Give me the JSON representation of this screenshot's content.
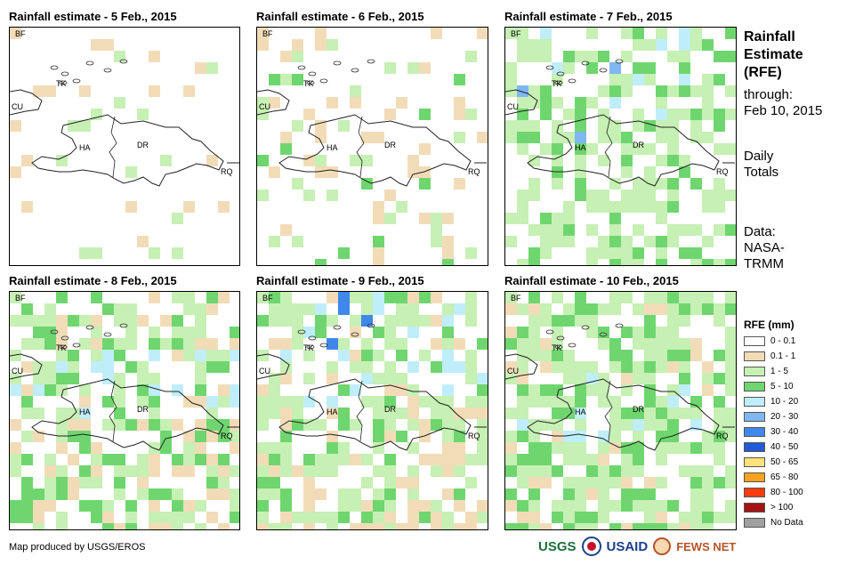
{
  "panels": [
    {
      "title": "Rainfall estimate - 5 Feb., 2015",
      "day": 0
    },
    {
      "title": "Rainfall estimate - 6 Feb., 2015",
      "day": 1
    },
    {
      "title": "Rainfall estimate - 7 Feb., 2015",
      "day": 2
    },
    {
      "title": "Rainfall estimate - 8 Feb., 2015",
      "day": 3
    },
    {
      "title": "Rainfall estimate - 9 Feb., 2015",
      "day": 4
    },
    {
      "title": "Rainfall estimate - 10 Feb., 2015",
      "day": 5
    }
  ],
  "map_labels": {
    "bf": "BF",
    "tk": "TK",
    "cu": "CU",
    "ha": "HA",
    "dr": "DR",
    "rq": "RQ"
  },
  "side": {
    "title_line1": "Rainfall",
    "title_line2": "Estimate",
    "title_line3": "(RFE)",
    "through": "through:",
    "through_date": "Feb 10, 2015",
    "totals_line1": "Daily",
    "totals_line2": "Totals",
    "data_line1": "Data:",
    "data_line2": "NASA-",
    "data_line3": "TRMM"
  },
  "legend": {
    "title": "RFE (mm)",
    "items": [
      {
        "label": "0 - 0.1",
        "color": "#ffffff"
      },
      {
        "label": "0.1 - 1",
        "color": "#f2dcb8"
      },
      {
        "label": "1 - 5",
        "color": "#c6f0b4"
      },
      {
        "label": "5 - 10",
        "color": "#6fd66f"
      },
      {
        "label": "10 - 20",
        "color": "#bfeefa"
      },
      {
        "label": "20 - 30",
        "color": "#7fb7f4"
      },
      {
        "label": "30 - 40",
        "color": "#3f88ea"
      },
      {
        "label": "40 - 50",
        "color": "#1f5bd6"
      },
      {
        "label": "50 - 65",
        "color": "#ffe27a"
      },
      {
        "label": "65 - 80",
        "color": "#f6a21e"
      },
      {
        "label": "80 - 100",
        "color": "#ff3c10"
      },
      {
        "label": "> 100",
        "color": "#a31414"
      },
      {
        "label": "No Data",
        "color": "#a0a0a0"
      }
    ]
  },
  "credit": "Map produced by USGS/EROS",
  "logos": {
    "usgs": "USGS",
    "usaid": "USAID",
    "fews": "FEWS NET"
  }
}
